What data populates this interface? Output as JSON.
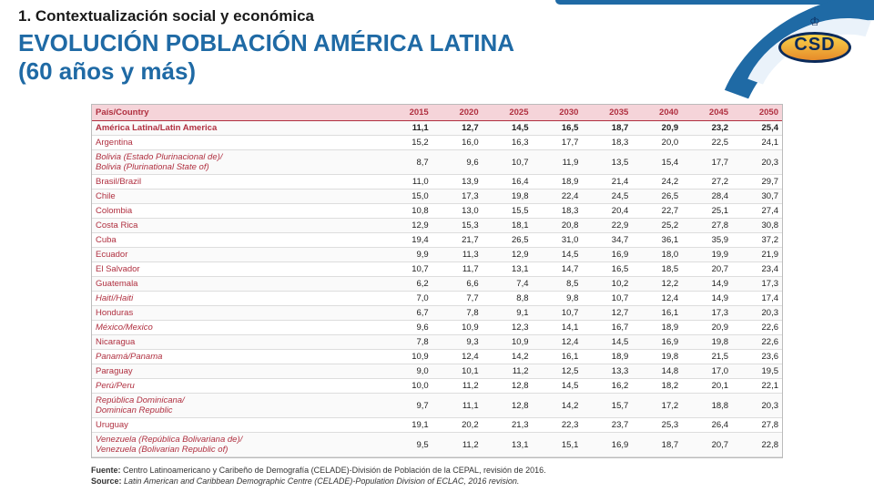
{
  "header": {
    "subtitle": "1. Contextualización social y económica",
    "title_line1": "EVOLUCIÓN POBLACIÓN AMÉRICA LATINA",
    "title_line2": "(60 años y más)"
  },
  "logo": {
    "text": "CSD",
    "crown": "♔"
  },
  "table": {
    "columns": [
      "País/Country",
      "2015",
      "2020",
      "2025",
      "2030",
      "2035",
      "2040",
      "2045",
      "2050"
    ],
    "rows": [
      {
        "highlight": true,
        "label": "América Latina/Latin America",
        "cells": [
          "11,1",
          "12,7",
          "14,5",
          "16,5",
          "18,7",
          "20,9",
          "23,2",
          "25,4"
        ]
      },
      {
        "label": "Argentina",
        "cells": [
          "15,2",
          "16,0",
          "16,3",
          "17,7",
          "18,3",
          "20,0",
          "22,5",
          "24,1"
        ]
      },
      {
        "italic": true,
        "label": "Bolivia (Estado Plurinacional de)/\nBolivia (Plurinational State of)",
        "cells": [
          "8,7",
          "9,6",
          "10,7",
          "11,9",
          "13,5",
          "15,4",
          "17,7",
          "20,3"
        ]
      },
      {
        "label": "Brasil/Brazil",
        "cells": [
          "11,0",
          "13,9",
          "16,4",
          "18,9",
          "21,4",
          "24,2",
          "27,2",
          "29,7"
        ]
      },
      {
        "label": "Chile",
        "cells": [
          "15,0",
          "17,3",
          "19,8",
          "22,4",
          "24,5",
          "26,5",
          "28,4",
          "30,7"
        ]
      },
      {
        "label": "Colombia",
        "cells": [
          "10,8",
          "13,0",
          "15,5",
          "18,3",
          "20,4",
          "22,7",
          "25,1",
          "27,4"
        ]
      },
      {
        "label": "Costa Rica",
        "cells": [
          "12,9",
          "15,3",
          "18,1",
          "20,8",
          "22,9",
          "25,2",
          "27,8",
          "30,8"
        ]
      },
      {
        "label": "Cuba",
        "cells": [
          "19,4",
          "21,7",
          "26,5",
          "31,0",
          "34,7",
          "36,1",
          "35,9",
          "37,2"
        ]
      },
      {
        "label": "Ecuador",
        "cells": [
          "9,9",
          "11,3",
          "12,9",
          "14,5",
          "16,9",
          "18,0",
          "19,9",
          "21,9"
        ]
      },
      {
        "label": "El Salvador",
        "cells": [
          "10,7",
          "11,7",
          "13,1",
          "14,7",
          "16,5",
          "18,5",
          "20,7",
          "23,4"
        ]
      },
      {
        "label": "Guatemala",
        "cells": [
          "6,2",
          "6,6",
          "7,4",
          "8,5",
          "10,2",
          "12,2",
          "14,9",
          "17,3"
        ]
      },
      {
        "italic": true,
        "label": "Haití/Haiti",
        "cells": [
          "7,0",
          "7,7",
          "8,8",
          "9,8",
          "10,7",
          "12,4",
          "14,9",
          "17,4"
        ]
      },
      {
        "label": "Honduras",
        "cells": [
          "6,7",
          "7,8",
          "9,1",
          "10,7",
          "12,7",
          "16,1",
          "17,3",
          "20,3"
        ]
      },
      {
        "italic": true,
        "label": "México/Mexico",
        "cells": [
          "9,6",
          "10,9",
          "12,3",
          "14,1",
          "16,7",
          "18,9",
          "20,9",
          "22,6"
        ]
      },
      {
        "label": "Nicaragua",
        "cells": [
          "7,8",
          "9,3",
          "10,9",
          "12,4",
          "14,5",
          "16,9",
          "19,8",
          "22,6"
        ]
      },
      {
        "italic": true,
        "label": "Panamá/Panama",
        "cells": [
          "10,9",
          "12,4",
          "14,2",
          "16,1",
          "18,9",
          "19,8",
          "21,5",
          "23,6"
        ]
      },
      {
        "label": "Paraguay",
        "cells": [
          "9,0",
          "10,1",
          "11,2",
          "12,5",
          "13,3",
          "14,8",
          "17,0",
          "19,5"
        ]
      },
      {
        "italic": true,
        "label": "Perú/Peru",
        "cells": [
          "10,0",
          "11,2",
          "12,8",
          "14,5",
          "16,2",
          "18,2",
          "20,1",
          "22,1"
        ]
      },
      {
        "italic": true,
        "label": "República Dominicana/\nDominican Republic",
        "cells": [
          "9,7",
          "11,1",
          "12,8",
          "14,2",
          "15,7",
          "17,2",
          "18,8",
          "20,3"
        ]
      },
      {
        "label": "Uruguay",
        "cells": [
          "19,1",
          "20,2",
          "21,3",
          "22,3",
          "23,7",
          "25,3",
          "26,4",
          "27,8"
        ]
      },
      {
        "italic": true,
        "label": "Venezuela (República Bolivariana de)/\nVenezuela (Bolivarian Republic of)",
        "cells": [
          "9,5",
          "11,2",
          "13,1",
          "15,1",
          "16,9",
          "18,7",
          "20,7",
          "22,8"
        ]
      }
    ]
  },
  "source": {
    "label_es": "Fuente:",
    "text_es": "Centro Latinoamericano y Caribeño de Demografía (CELADE)-División de Población de la CEPAL, revisión de 2016.",
    "label_en": "Source:",
    "text_en": "Latin American and Caribbean Demographic Centre (CELADE)-Population Division of ECLAC, 2016 revision."
  },
  "colors": {
    "title": "#1f6aa5",
    "header_bg": "#f5d4d9",
    "header_text": "#b03040"
  }
}
